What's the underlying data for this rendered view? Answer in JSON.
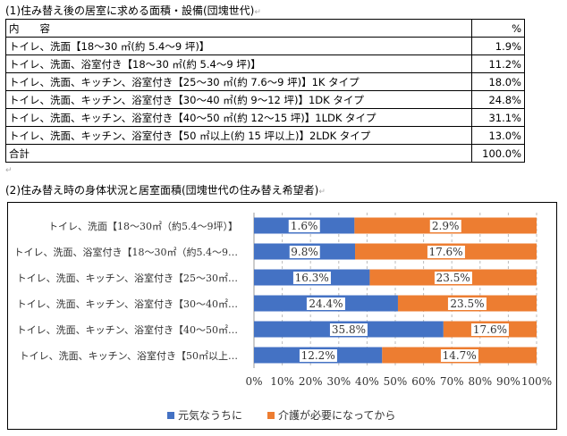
{
  "section1": {
    "title": "(1)住み替え後の居室に求める面積・設備(団塊世代)",
    "header": {
      "content": "内　　容",
      "percent": "%"
    },
    "rows": [
      {
        "content": "トイレ、洗面【18〜30 ㎡(約 5.4〜9 坪)】",
        "percent": "1.9%"
      },
      {
        "content": "トイレ、洗面、浴室付き【18〜30 ㎡(約 5.4〜9 坪)】",
        "percent": "11.2%"
      },
      {
        "content": "トイレ、洗面、キッチン、浴室付き【25〜30 ㎡(約 7.6〜9 坪)】1K タイプ",
        "percent": "18.0%"
      },
      {
        "content": "トイレ、洗面、キッチン、浴室付き【30〜40 ㎡(約 9〜12 坪)】1DK タイプ",
        "percent": "24.8%"
      },
      {
        "content": "トイレ、洗面、キッチン、浴室付き【40〜50 ㎡(約 12〜15 坪)】1LDK タイプ",
        "percent": "31.1%"
      },
      {
        "content": "トイレ、洗面、キッチン、浴室付き【50 ㎡以上(約 15 坪以上)】2LDK タイプ",
        "percent": "13.0%"
      },
      {
        "content": "合計",
        "percent": "100.0%"
      }
    ]
  },
  "section2": {
    "title": "(2)住み替え時の身体状況と居室面積(団塊世代の住み替え希望者)"
  },
  "chart_data": {
    "type": "bar",
    "orientation": "horizontal",
    "stacking": "percent",
    "categories": [
      "トイレ、洗面【18～30㎡（約5.4～9坪）】",
      "トイレ、洗面、浴室付き【18～30㎡（約5.4～9…",
      "トイレ、洗面、キッチン、浴室付き【25～30㎡…",
      "トイレ、洗面、キッチン、浴室付き【30～40㎡…",
      "トイレ、洗面、キッチン、浴室付き【40～50㎡…",
      "トイレ、洗面、キッチン、浴室付き【50㎡以上…"
    ],
    "series": [
      {
        "name": "元気なうちに",
        "values": [
          1.6,
          9.8,
          16.3,
          24.4,
          35.8,
          12.2
        ],
        "labels": [
          "1.6%",
          "9.8%",
          "16.3%",
          "24.4%",
          "35.8%",
          "12.2%"
        ],
        "color": "#4472C4"
      },
      {
        "name": "介護が必要になってから",
        "values": [
          2.9,
          17.6,
          23.5,
          23.5,
          17.6,
          14.7
        ],
        "labels": [
          "2.9%",
          "17.6%",
          "23.5%",
          "23.5%",
          "17.6%",
          "14.7%"
        ],
        "color": "#ED7D31"
      }
    ],
    "xlim": [
      0,
      100
    ],
    "xticks": [
      "0%",
      "10%",
      "20%",
      "30%",
      "40%",
      "50%",
      "60%",
      "70%",
      "80%",
      "90%",
      "100%"
    ],
    "grid": "vertical dashed",
    "legend": "bottom"
  }
}
